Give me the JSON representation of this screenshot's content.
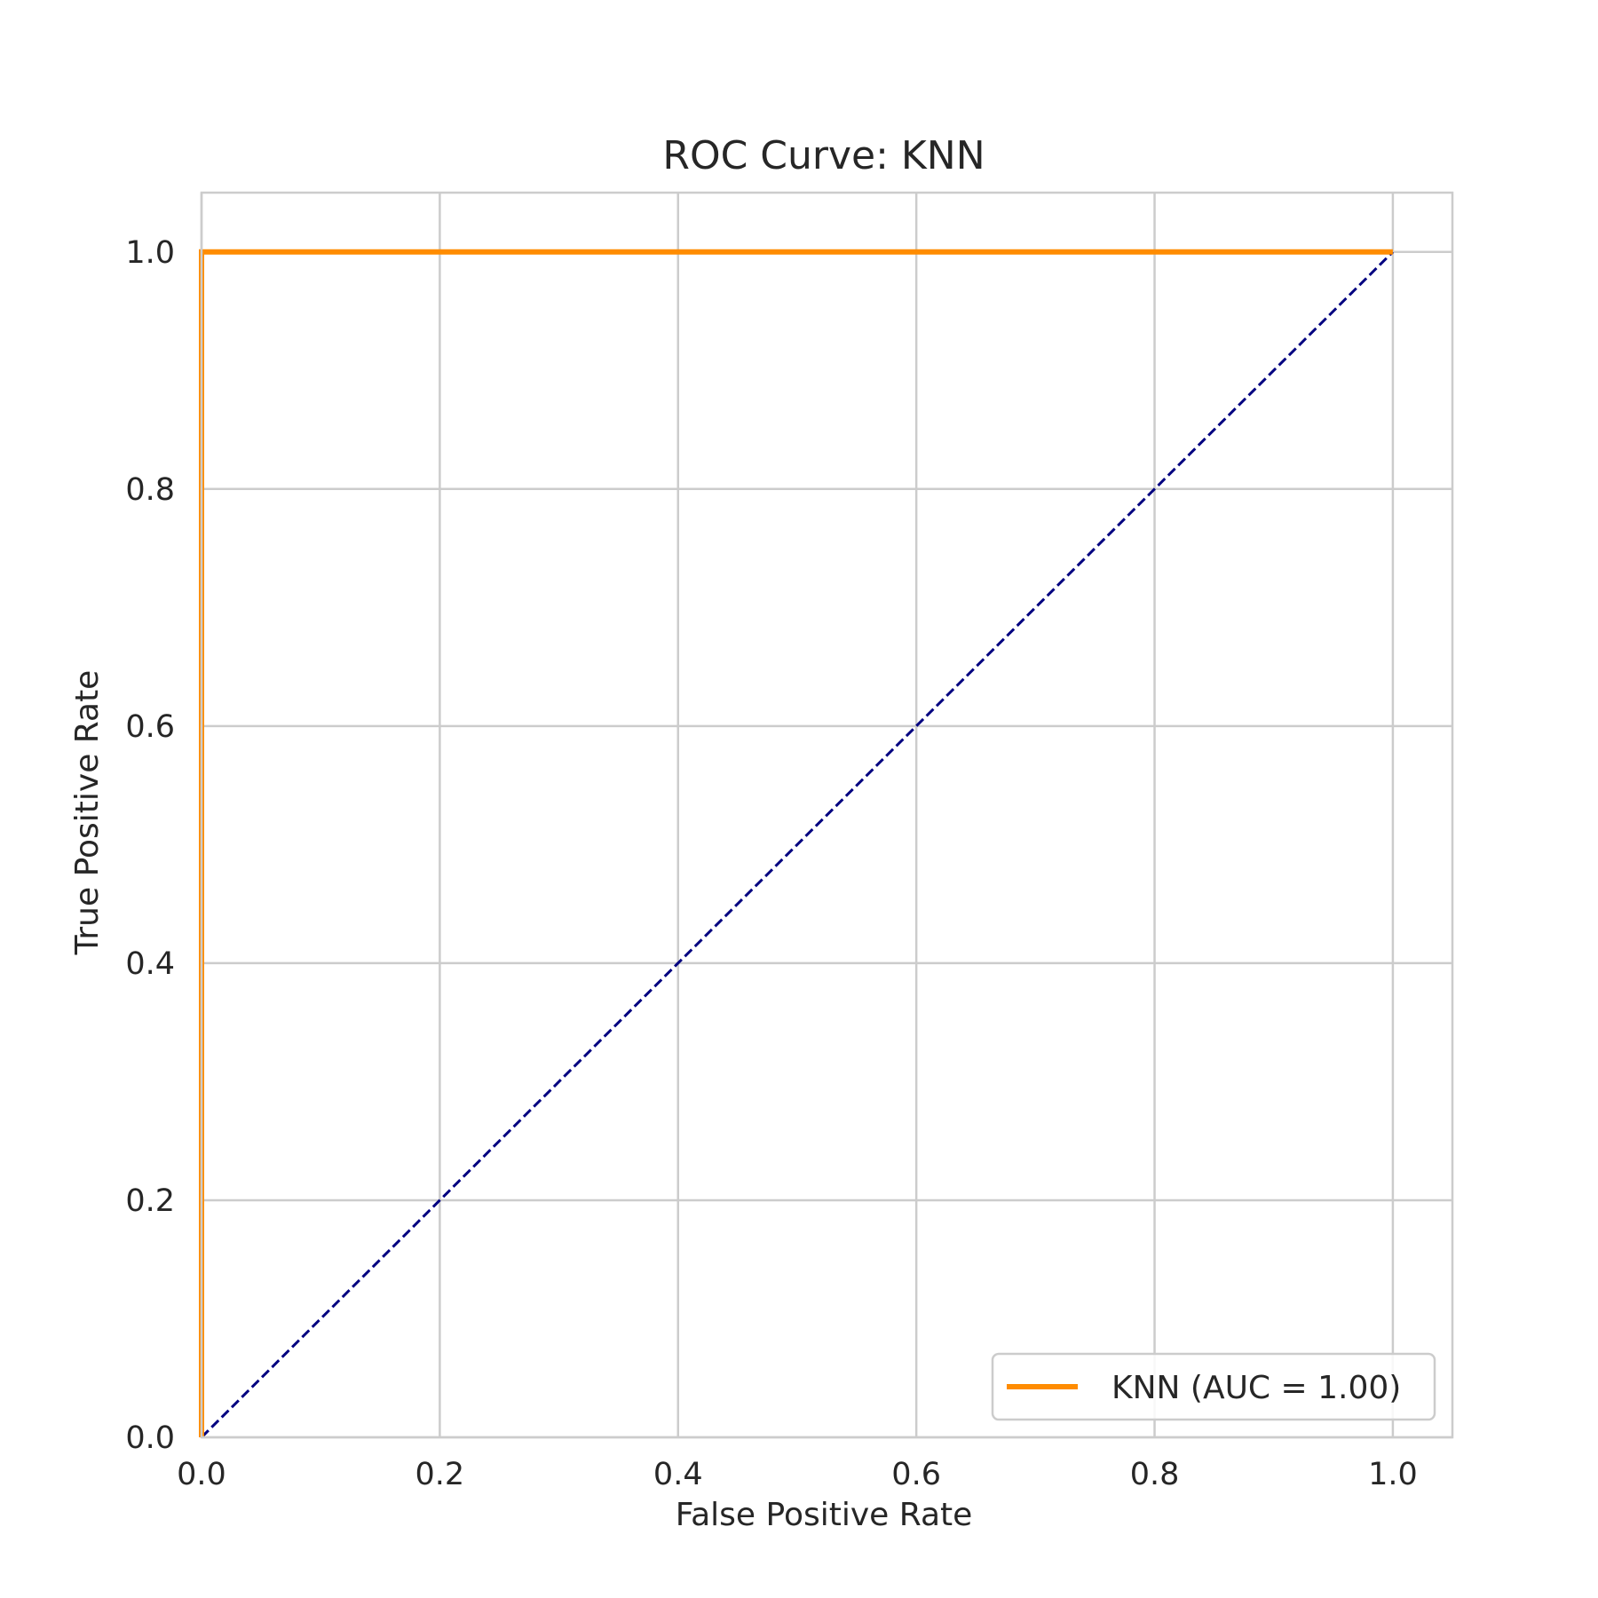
{
  "chart_data": {
    "type": "line",
    "title": "ROC Curve: KNN",
    "xlabel": "False Positive Rate",
    "ylabel": "True Positive Rate",
    "xlim": [
      0.0,
      1.05
    ],
    "ylim": [
      0.0,
      1.05
    ],
    "x_ticks": [
      "0.0",
      "0.2",
      "0.4",
      "0.6",
      "0.8",
      "1.0"
    ],
    "y_ticks": [
      "0.0",
      "0.2",
      "0.4",
      "0.6",
      "0.8",
      "1.0"
    ],
    "grid": true,
    "legend_position": "lower-right",
    "series": [
      {
        "name": "KNN (AUC = 1.00)",
        "color": "#ff8c00",
        "style": "solid",
        "x": [
          0.0,
          0.0,
          1.0
        ],
        "y": [
          0.0,
          1.0,
          1.0
        ]
      },
      {
        "color": "#000080",
        "style": "dashed",
        "x": [
          0.0,
          1.0
        ],
        "y": [
          0.0,
          1.0
        ]
      }
    ]
  }
}
